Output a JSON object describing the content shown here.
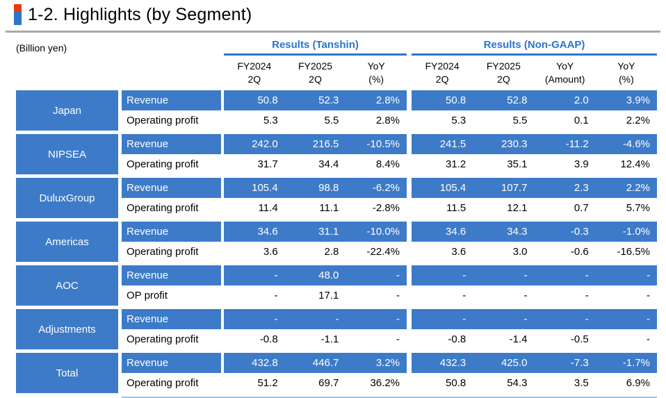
{
  "title": "1-2. Highlights (by Segment)",
  "unit_label": "(Billion yen)",
  "colors": {
    "table_blue": "#3d7bc8",
    "header_blue": "#2e74c9",
    "accent_red": "#e8380c",
    "accent_blue": "#2e74c9",
    "divider_gray": "#a8a8a8",
    "bottom_line_blue": "#9dc3e6"
  },
  "groups": [
    {
      "label": "Results (Tanshin)",
      "columns": [
        [
          "FY2024",
          "2Q"
        ],
        [
          "FY2025",
          "2Q"
        ],
        [
          "YoY",
          "(%)"
        ]
      ]
    },
    {
      "label": "Results (Non-GAAP)",
      "columns": [
        [
          "FY2024",
          "2Q"
        ],
        [
          "FY2025",
          "2Q"
        ],
        [
          "YoY",
          "(Amount)"
        ],
        [
          "YoY",
          "(%)"
        ]
      ]
    }
  ],
  "segments": [
    {
      "name": "Japan",
      "rows": [
        {
          "label": "Revenue",
          "tanshin": [
            "50.8",
            "52.3",
            "2.8%"
          ],
          "nongaap": [
            "50.8",
            "52.8",
            "2.0",
            "3.9%"
          ]
        },
        {
          "label": "Operating profit",
          "tanshin": [
            "5.3",
            "5.5",
            "2.8%"
          ],
          "nongaap": [
            "5.3",
            "5.5",
            "0.1",
            "2.2%"
          ]
        }
      ]
    },
    {
      "name": "NIPSEA",
      "rows": [
        {
          "label": "Revenue",
          "tanshin": [
            "242.0",
            "216.5",
            "-10.5%"
          ],
          "nongaap": [
            "241.5",
            "230.3",
            "-11.2",
            "-4.6%"
          ]
        },
        {
          "label": "Operating profit",
          "tanshin": [
            "31.7",
            "34.4",
            "8.4%"
          ],
          "nongaap": [
            "31.2",
            "35.1",
            "3.9",
            "12.4%"
          ]
        }
      ]
    },
    {
      "name": "DuluxGroup",
      "rows": [
        {
          "label": "Revenue",
          "tanshin": [
            "105.4",
            "98.8",
            "-6.2%"
          ],
          "nongaap": [
            "105.4",
            "107.7",
            "2.3",
            "2.2%"
          ]
        },
        {
          "label": "Operating profit",
          "tanshin": [
            "11.4",
            "11.1",
            "-2.8%"
          ],
          "nongaap": [
            "11.5",
            "12.1",
            "0.7",
            "5.7%"
          ]
        }
      ]
    },
    {
      "name": "Americas",
      "rows": [
        {
          "label": "Revenue",
          "tanshin": [
            "34.6",
            "31.1",
            "-10.0%"
          ],
          "nongaap": [
            "34.6",
            "34.3",
            "-0.3",
            "-1.0%"
          ]
        },
        {
          "label": "Operating profit",
          "tanshin": [
            "3.6",
            "2.8",
            "-22.4%"
          ],
          "nongaap": [
            "3.6",
            "3.0",
            "-0.6",
            "-16.5%"
          ]
        }
      ]
    },
    {
      "name": "AOC",
      "rows": [
        {
          "label": "Revenue",
          "tanshin": [
            "-",
            "48.0",
            "-"
          ],
          "nongaap": [
            "-",
            "-",
            "-",
            "-"
          ]
        },
        {
          "label": "OP profit",
          "tanshin": [
            "-",
            "17.1",
            "-"
          ],
          "nongaap": [
            "-",
            "-",
            "-",
            "-"
          ]
        }
      ]
    },
    {
      "name": "Adjustments",
      "rows": [
        {
          "label": "Revenue",
          "tanshin": [
            "-",
            "-",
            "-"
          ],
          "nongaap": [
            "-",
            "-",
            "-",
            "-"
          ]
        },
        {
          "label": "Operating profit",
          "tanshin": [
            "-0.8",
            "-1.1",
            "-"
          ],
          "nongaap": [
            "-0.8",
            "-1.4",
            "-0.5",
            "-"
          ]
        }
      ]
    },
    {
      "name": "Total",
      "rows": [
        {
          "label": "Revenue",
          "tanshin": [
            "432.8",
            "446.7",
            "3.2%"
          ],
          "nongaap": [
            "432.3",
            "425.0",
            "-7.3",
            "-1.7%"
          ]
        },
        {
          "label": "Operating profit",
          "tanshin": [
            "51.2",
            "69.7",
            "36.2%"
          ],
          "nongaap": [
            "50.8",
            "54.3",
            "3.5",
            "6.9%"
          ]
        }
      ]
    }
  ]
}
